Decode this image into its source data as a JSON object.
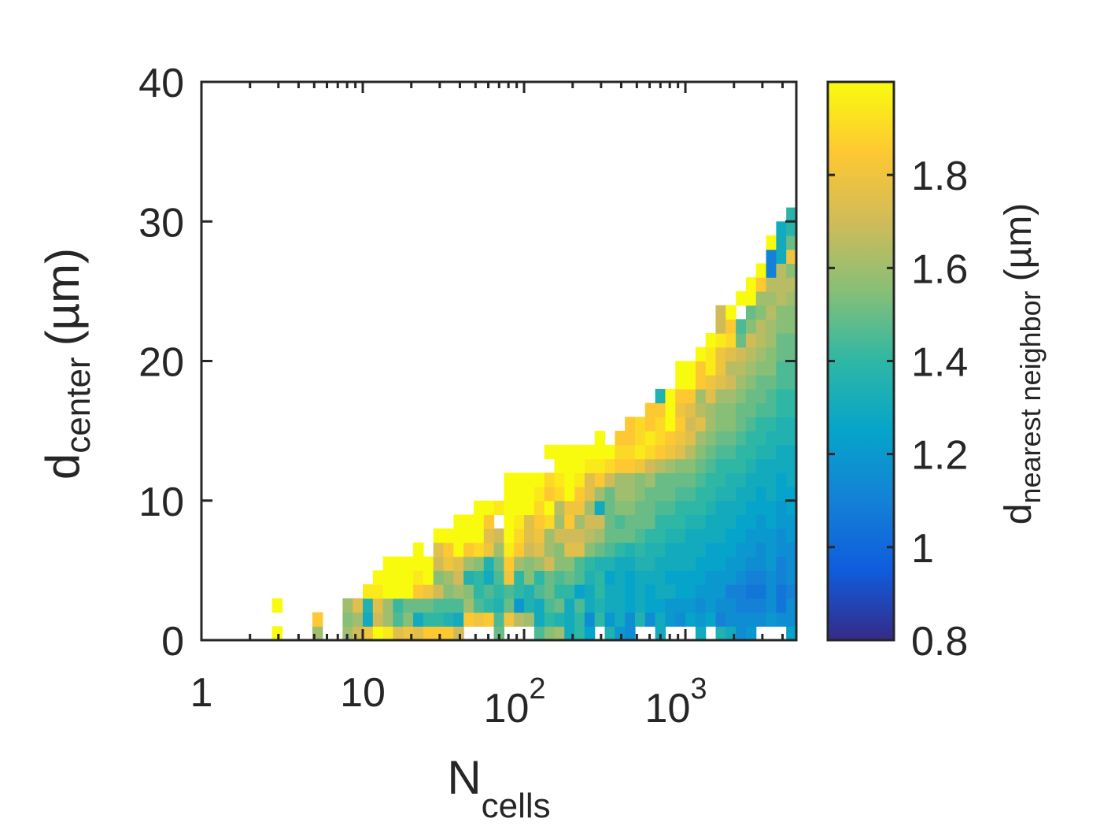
{
  "chart_data": {
    "type": "heatmap",
    "x_scale": "log",
    "xlim": [
      1,
      4870
    ],
    "ylim": [
      0,
      40
    ],
    "y_bin_size": 1,
    "x_bin_width_decades": 0.0625,
    "grid": false,
    "xlabel": {
      "main": "N",
      "sub": "cells"
    },
    "ylabel": {
      "main": "d",
      "sub": "center",
      "unit": "(µm)"
    },
    "xticks": [
      {
        "value": 1,
        "base": "1",
        "exp": ""
      },
      {
        "value": 10,
        "base": "10",
        "exp": ""
      },
      {
        "value": 100,
        "base": "10",
        "exp": "2"
      },
      {
        "value": 1000,
        "base": "10",
        "exp": "3"
      }
    ],
    "yticks": [
      {
        "value": 0,
        "label": "0"
      },
      {
        "value": 10,
        "label": "10"
      },
      {
        "value": 20,
        "label": "20"
      },
      {
        "value": 30,
        "label": "30"
      },
      {
        "value": 40,
        "label": "40"
      }
    ],
    "colorbar": {
      "colormap": "parula",
      "clim": [
        0.8,
        2.0
      ],
      "label": {
        "main": "d",
        "sub": "nearest neighbor",
        "unit": "(µm)"
      },
      "ticks": [
        {
          "value": 0.8,
          "label": "0.8"
        },
        {
          "value": 1.0,
          "label": "1"
        },
        {
          "value": 1.2,
          "label": "1.2"
        },
        {
          "value": 1.4,
          "label": "1.4"
        },
        {
          "value": 1.6,
          "label": "1.6"
        },
        {
          "value": 1.8,
          "label": "1.8"
        }
      ],
      "stops": [
        "#352a87",
        "#0f5cdd",
        "#1481d6",
        "#06a4ca",
        "#2eb7a4",
        "#87bf77",
        "#d1bb59",
        "#fec832",
        "#f9fb0e"
      ]
    },
    "axis_color": "#262626",
    "columns": [
      {
        "x_start": 2.738,
        "values": [
          2.0,
          null,
          2.0
        ]
      },
      {
        "x_start": 4.87,
        "values": [
          1.6,
          1.85
        ]
      },
      {
        "x_start": 7.499,
        "values": [
          1.6,
          1.55,
          1.6
        ]
      },
      {
        "x_start": 8.66,
        "values": [
          1.7,
          1.6,
          1.75
        ]
      },
      {
        "x_start": 10.0,
        "values": [
          1.8,
          1.3,
          1.35,
          1.95
        ]
      },
      {
        "x_start": 11.55,
        "values": [
          2.0,
          1.7,
          1.75,
          1.95,
          2.0
        ]
      },
      {
        "x_start": 13.34,
        "values": [
          1.95,
          1.6,
          1.6,
          2.0,
          2.0,
          2.0
        ]
      },
      {
        "x_start": 15.4,
        "values": [
          1.75,
          1.45,
          1.42,
          2.0,
          2.0,
          2.0
        ]
      },
      {
        "x_start": 17.78,
        "values": [
          1.8,
          1.55,
          1.5,
          2.0,
          2.0,
          2.0
        ]
      },
      {
        "x_start": 20.54,
        "values": [
          1.75,
          1.3,
          1.5,
          1.85,
          1.95,
          2.0,
          2.0
        ]
      },
      {
        "x_start": 23.71,
        "values": [
          1.85,
          1.4,
          1.5,
          1.8,
          2.0,
          2.0
        ]
      },
      {
        "x_start": 27.38,
        "values": [
          1.85,
          1.4,
          1.45,
          1.7,
          1.55,
          1.7,
          1.75,
          2.0
        ]
      },
      {
        "x_start": 31.62,
        "values": [
          1.85,
          1.35,
          1.45,
          1.55,
          1.6,
          1.8,
          1.85,
          2.0
        ]
      },
      {
        "x_start": 36.52,
        "values": [
          1.7,
          1.3,
          1.45,
          1.6,
          1.7,
          1.75,
          2.0,
          2.0,
          2.0
        ]
      },
      {
        "x_start": 42.17,
        "values": [
          null,
          1.85,
          1.6,
          1.55,
          1.35,
          1.6,
          1.85,
          2.0,
          2.0
        ]
      },
      {
        "x_start": 48.7,
        "values": [
          null,
          1.8,
          1.45,
          1.4,
          1.4,
          1.55,
          1.9,
          2.0,
          2.0,
          2.0
        ]
      },
      {
        "x_start": 56.23,
        "values": [
          null,
          1.85,
          1.4,
          1.45,
          1.3,
          1.35,
          1.8,
          1.75,
          1.85,
          2.0
        ]
      },
      {
        "x_start": 64.94,
        "values": [
          1.5,
          1.45,
          1.35,
          1.4,
          1.45,
          1.5,
          1.6,
          1.7,
          null,
          1.95
        ]
      },
      {
        "x_start": 74.99,
        "values": [
          null,
          1.8,
          1.5,
          1.45,
          1.8,
          1.85,
          1.95,
          2.0,
          2.0,
          2.0,
          2.0,
          2.0
        ]
      },
      {
        "x_start": 86.6,
        "values": [
          null,
          1.65,
          1.2,
          1.4,
          1.4,
          1.6,
          1.85,
          1.9,
          1.95,
          2.0,
          2.0,
          2.0
        ]
      },
      {
        "x_start": 100,
        "values": [
          null,
          1.6,
          1.35,
          1.35,
          1.55,
          1.55,
          1.7,
          1.75,
          1.75,
          2.0,
          2.0,
          2.0
        ]
      },
      {
        "x_start": 115.5,
        "values": [
          1.45,
          1.3,
          1.3,
          1.45,
          1.4,
          1.6,
          1.75,
          1.8,
          1.85,
          1.9,
          1.95,
          2.0
        ]
      },
      {
        "x_start": 133.4,
        "values": [
          1.55,
          1.4,
          1.45,
          1.5,
          1.5,
          1.7,
          1.6,
          1.6,
          1.9,
          2.0,
          1.85,
          1.9,
          null,
          2.0
        ]
      },
      {
        "x_start": 154.0,
        "values": [
          1.6,
          1.35,
          1.5,
          1.4,
          1.45,
          1.55,
          1.55,
          1.7,
          1.6,
          1.65,
          1.9,
          1.95,
          2.0,
          2.0
        ]
      },
      {
        "x_start": 177.8,
        "values": [
          1.3,
          1.3,
          1.3,
          1.4,
          1.5,
          1.55,
          1.75,
          1.7,
          1.85,
          1.8,
          2.0,
          2.0,
          2.0,
          2.0
        ]
      },
      {
        "x_start": 205.4,
        "values": [
          1.4,
          1.4,
          1.45,
          1.25,
          1.45,
          1.45,
          1.75,
          1.7,
          1.6,
          1.8,
          1.85,
          1.95,
          2.0,
          2.0
        ]
      },
      {
        "x_start": 237.1,
        "values": [
          1.25,
          1.15,
          1.3,
          1.3,
          1.35,
          1.4,
          1.55,
          1.65,
          1.7,
          1.6,
          1.75,
          1.75,
          1.95,
          2.0
        ]
      },
      {
        "x_start": 273.8,
        "values": [
          null,
          1.4,
          1.35,
          1.4,
          1.4,
          1.35,
          1.5,
          1.6,
          1.7,
          1.3,
          1.6,
          1.85,
          1.95,
          2.0,
          2.0
        ]
      },
      {
        "x_start": 316.2,
        "values": [
          1.35,
          1.2,
          1.3,
          1.3,
          1.25,
          1.35,
          1.45,
          1.5,
          1.5,
          1.5,
          1.5,
          1.7,
          1.9,
          2.0
        ]
      },
      {
        "x_start": 365.2,
        "values": [
          1.2,
          1.3,
          1.3,
          1.3,
          1.3,
          1.3,
          1.4,
          1.5,
          1.45,
          1.55,
          1.6,
          1.6,
          1.85,
          1.9,
          1.85
        ]
      },
      {
        "x_start": 421.7,
        "values": [
          1.15,
          1.15,
          1.25,
          1.25,
          1.25,
          1.3,
          1.35,
          1.5,
          1.5,
          1.55,
          1.6,
          1.6,
          1.85,
          1.9,
          1.85,
          1.85
        ]
      },
      {
        "x_start": 487.0,
        "values": [
          null,
          1.35,
          1.3,
          1.3,
          1.3,
          1.35,
          1.4,
          1.45,
          1.5,
          1.5,
          1.55,
          1.55,
          1.8,
          1.95,
          1.9,
          1.9
        ]
      },
      {
        "x_start": 562.3,
        "values": [
          null,
          1.15,
          1.25,
          1.25,
          1.3,
          1.35,
          1.35,
          1.4,
          1.5,
          1.5,
          1.5,
          1.6,
          1.7,
          1.9,
          1.95,
          1.85,
          1.85
        ]
      },
      {
        "x_start": 649.4,
        "values": [
          1.3,
          1.3,
          1.25,
          1.3,
          1.3,
          1.3,
          1.35,
          1.4,
          1.4,
          1.45,
          1.5,
          1.5,
          1.65,
          1.85,
          1.9,
          1.9,
          1.85,
          1.35
        ]
      },
      {
        "x_start": 749.9,
        "values": [
          null,
          1.2,
          1.2,
          1.3,
          1.25,
          1.3,
          1.3,
          1.35,
          1.4,
          1.45,
          1.5,
          1.5,
          1.6,
          1.8,
          1.85,
          2.0,
          2.0,
          2.0
        ]
      },
      {
        "x_start": 866.0,
        "values": [
          null,
          1.15,
          1.2,
          1.25,
          1.25,
          1.3,
          1.3,
          1.35,
          1.4,
          1.4,
          1.45,
          1.5,
          1.55,
          1.75,
          1.8,
          1.85,
          1.8,
          1.85,
          2.0,
          2.0
        ]
      },
      {
        "x_start": 1000,
        "values": [
          null,
          1.25,
          1.2,
          1.25,
          1.25,
          1.3,
          1.3,
          1.3,
          1.35,
          1.4,
          1.45,
          1.5,
          1.55,
          1.65,
          1.75,
          1.7,
          1.75,
          1.85,
          2.0,
          2.0
        ]
      },
      {
        "x_start": 1155,
        "values": [
          1.3,
          1.2,
          1.15,
          1.2,
          1.25,
          1.25,
          1.3,
          1.3,
          1.35,
          1.4,
          1.4,
          1.45,
          1.5,
          1.55,
          1.6,
          1.75,
          1.65,
          1.6,
          1.85,
          1.85,
          2.0
        ]
      },
      {
        "x_start": 1334,
        "values": [
          null,
          1.25,
          1.2,
          1.2,
          1.2,
          1.25,
          1.25,
          1.3,
          1.3,
          1.35,
          1.4,
          1.4,
          1.45,
          1.5,
          1.55,
          1.6,
          1.6,
          1.75,
          1.8,
          1.95,
          1.95,
          2.0
        ]
      },
      {
        "x_start": 1540,
        "values": [
          1.35,
          1.1,
          1.15,
          1.2,
          1.2,
          1.25,
          1.25,
          1.3,
          1.3,
          1.3,
          1.35,
          1.4,
          1.4,
          1.45,
          1.5,
          1.55,
          1.55,
          1.6,
          1.75,
          1.8,
          1.8,
          1.95,
          1.7,
          1.7
        ]
      },
      {
        "x_start": 1778,
        "values": [
          1.3,
          1.15,
          1.15,
          1.1,
          1.2,
          1.2,
          1.25,
          1.25,
          1.3,
          1.3,
          1.35,
          1.35,
          1.4,
          1.45,
          1.5,
          1.55,
          1.55,
          1.6,
          1.7,
          1.65,
          1.75,
          1.9,
          1.85,
          2.0
        ]
      },
      {
        "x_start": 2054,
        "values": [
          1.15,
          1.15,
          1.1,
          1.1,
          1.15,
          1.2,
          1.2,
          1.25,
          1.25,
          1.3,
          1.3,
          1.35,
          1.4,
          1.4,
          1.45,
          1.5,
          1.5,
          1.55,
          1.6,
          1.65,
          1.7,
          1.5,
          1.45,
          null,
          2.0
        ]
      },
      {
        "x_start": 2371,
        "values": [
          1.2,
          1.15,
          1.1,
          1.05,
          1.1,
          1.15,
          1.2,
          1.2,
          1.25,
          1.25,
          1.3,
          1.3,
          1.35,
          1.4,
          1.4,
          1.45,
          1.5,
          1.5,
          1.55,
          1.6,
          1.65,
          1.7,
          1.55,
          1.5,
          2.0,
          2.0
        ]
      },
      {
        "x_start": 2738,
        "values": [
          null,
          1.15,
          1.1,
          1.05,
          1.1,
          1.15,
          1.15,
          1.2,
          1.2,
          1.25,
          1.25,
          1.3,
          1.3,
          1.35,
          1.4,
          1.4,
          1.45,
          1.5,
          1.5,
          1.55,
          1.6,
          1.65,
          1.65,
          1.55,
          1.6,
          1.85,
          2.0
        ]
      },
      {
        "x_start": 3162,
        "values": [
          null,
          1.2,
          1.15,
          1.15,
          1.15,
          1.2,
          1.2,
          1.2,
          1.25,
          1.25,
          1.3,
          1.3,
          1.3,
          1.35,
          1.35,
          1.4,
          1.45,
          1.45,
          1.5,
          1.55,
          1.55,
          1.6,
          1.6,
          1.65,
          1.6,
          1.65,
          1.1,
          1.1,
          2.0
        ]
      },
      {
        "x_start": 3652,
        "values": [
          null,
          1.15,
          1.05,
          1.05,
          1.1,
          1.1,
          1.15,
          1.15,
          1.2,
          1.2,
          1.25,
          1.25,
          1.3,
          1.3,
          1.35,
          1.35,
          1.4,
          1.4,
          1.45,
          1.45,
          1.5,
          1.5,
          1.55,
          1.55,
          1.65,
          1.65,
          1.65,
          1.3,
          1.3,
          1.3
        ]
      },
      {
        "x_start": 4217,
        "values": [
          1.25,
          1.15,
          1.15,
          1.1,
          1.15,
          1.15,
          1.15,
          1.2,
          1.2,
          1.25,
          1.25,
          1.3,
          1.3,
          1.3,
          1.35,
          1.35,
          1.4,
          1.4,
          1.45,
          1.45,
          1.5,
          1.5,
          1.55,
          1.55,
          1.6,
          1.65,
          1.55,
          1.8,
          1.5,
          1.38,
          1.38
        ]
      }
    ]
  }
}
